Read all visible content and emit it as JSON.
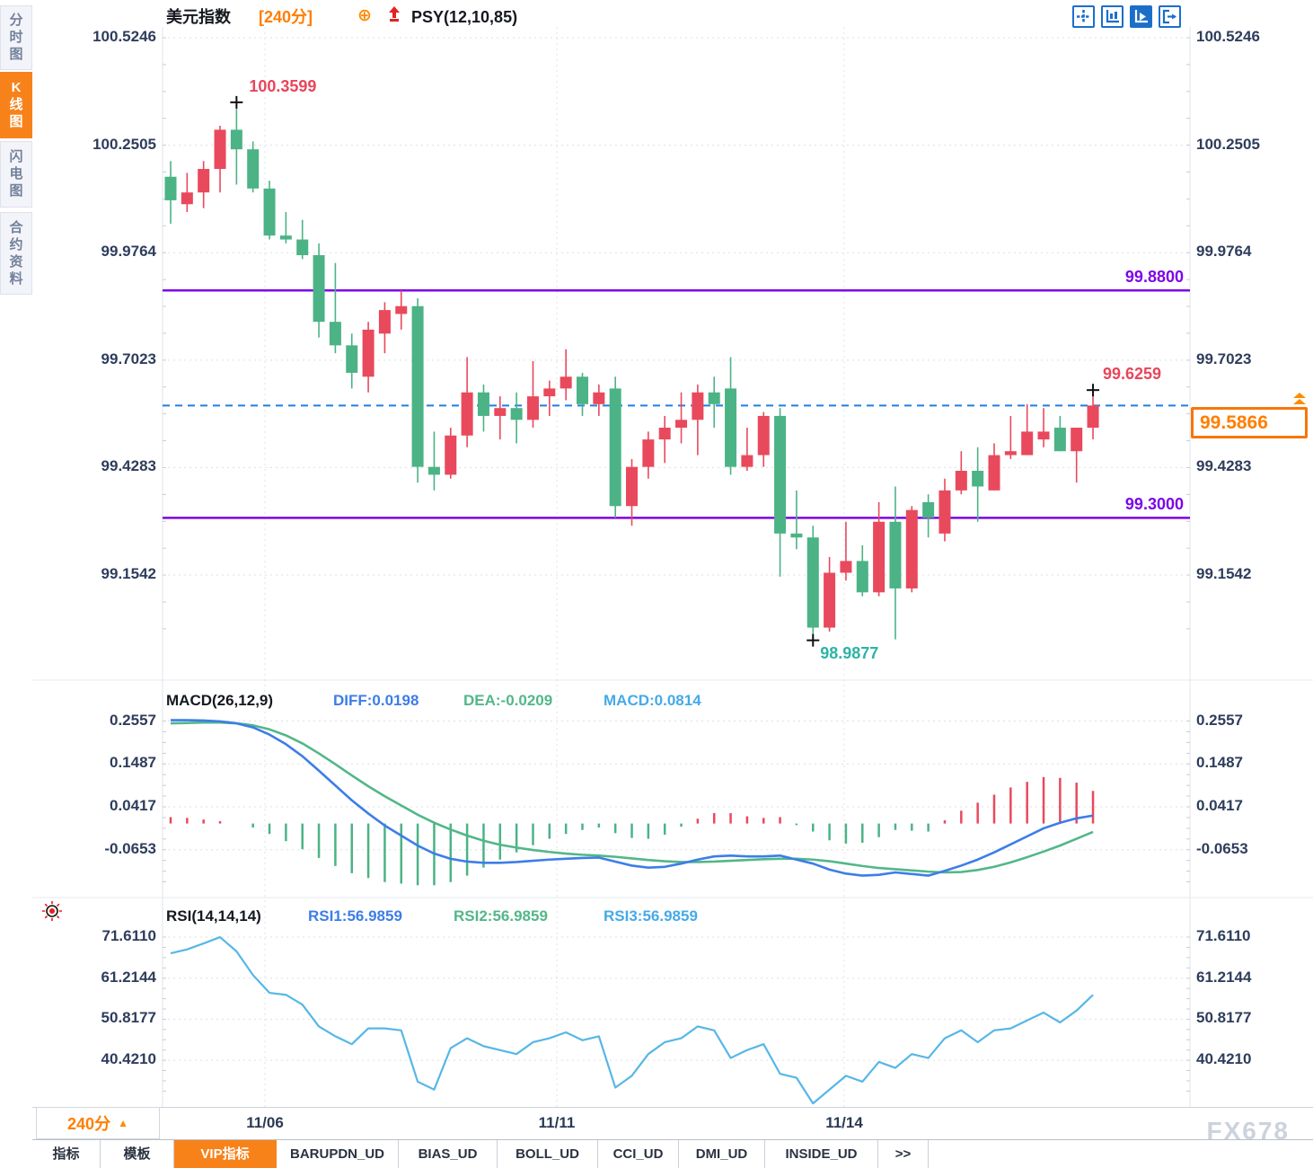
{
  "sidebar": {
    "tabs": [
      {
        "label": "分时图",
        "active": false
      },
      {
        "label": "K线图",
        "active": true
      },
      {
        "label": "闪电图",
        "active": false
      },
      {
        "label": "合约资料",
        "active": false
      }
    ]
  },
  "header": {
    "title": "美元指数",
    "period": "[240分]",
    "plus_icon": "⊕",
    "indicator": "PSY(12,10,85)"
  },
  "toolbar_icons": [
    {
      "name": "crosshair-move",
      "active": false
    },
    {
      "name": "axes-candles",
      "active": false
    },
    {
      "name": "axes-play",
      "active": true
    },
    {
      "name": "exit-panel",
      "active": false
    }
  ],
  "colors": {
    "up": "#e9495c",
    "down": "#4bb385",
    "purple": "#7d05e8",
    "orange": "#ff7e00",
    "dash_blue": "#1f7fe0",
    "diff_blue": "#3d7de8",
    "dea_green": "#52b788",
    "macd_lightblue": "#45aae8",
    "rsi_line": "#56b7e6",
    "teal": "#2db3a6",
    "red_label": "#e9455a"
  },
  "chart_data": {
    "type": "candlestick",
    "symbol": "美元指数",
    "interval": "240分",
    "panels": {
      "price": {
        "axis_labels": [
          "100.5246",
          "100.2505",
          "99.9764",
          "99.7023",
          "99.4283",
          "99.1542"
        ],
        "axis_range": [
          98.9,
          100.55
        ],
        "candles": [
          [
            100.17,
            100.21,
            100.05,
            100.11
          ],
          [
            100.1,
            100.18,
            100.08,
            100.13
          ],
          [
            100.13,
            100.21,
            100.09,
            100.19
          ],
          [
            100.19,
            100.3,
            100.13,
            100.29
          ],
          [
            100.29,
            100.3599,
            100.15,
            100.24
          ],
          [
            100.24,
            100.26,
            100.13,
            100.14
          ],
          [
            100.14,
            100.16,
            100.01,
            100.02
          ],
          [
            100.02,
            100.08,
            100.0,
            100.01
          ],
          [
            100.01,
            100.06,
            99.96,
            99.97
          ],
          [
            99.97,
            100.0,
            99.76,
            99.8
          ],
          [
            99.8,
            99.95,
            99.72,
            99.74
          ],
          [
            99.74,
            99.77,
            99.63,
            99.67
          ],
          [
            99.66,
            99.8,
            99.62,
            99.78
          ],
          [
            99.77,
            99.85,
            99.72,
            99.83
          ],
          [
            99.82,
            99.88,
            99.78,
            99.84
          ],
          [
            99.84,
            99.86,
            99.39,
            99.43
          ],
          [
            99.43,
            99.52,
            99.37,
            99.41
          ],
          [
            99.41,
            99.53,
            99.4,
            99.51
          ],
          [
            99.51,
            99.71,
            99.48,
            99.62
          ],
          [
            99.62,
            99.64,
            99.52,
            99.56
          ],
          [
            99.56,
            99.61,
            99.5,
            99.58
          ],
          [
            99.58,
            99.62,
            99.49,
            99.55
          ],
          [
            99.55,
            99.7,
            99.53,
            99.61
          ],
          [
            99.61,
            99.65,
            99.56,
            99.63
          ],
          [
            99.63,
            99.73,
            99.6,
            99.66
          ],
          [
            99.66,
            99.67,
            99.56,
            99.59
          ],
          [
            99.59,
            99.64,
            99.56,
            99.62
          ],
          [
            99.63,
            99.66,
            99.3,
            99.33
          ],
          [
            99.33,
            99.45,
            99.28,
            99.43
          ],
          [
            99.43,
            99.52,
            99.4,
            99.5
          ],
          [
            99.5,
            99.56,
            99.44,
            99.53
          ],
          [
            99.53,
            99.62,
            99.49,
            99.55
          ],
          [
            99.55,
            99.64,
            99.46,
            99.62
          ],
          [
            99.62,
            99.66,
            99.53,
            99.59
          ],
          [
            99.63,
            99.71,
            99.41,
            99.43
          ],
          [
            99.43,
            99.53,
            99.42,
            99.46
          ],
          [
            99.46,
            99.57,
            99.43,
            99.56
          ],
          [
            99.56,
            99.58,
            99.15,
            99.26
          ],
          [
            99.26,
            99.37,
            99.22,
            99.25
          ],
          [
            99.25,
            99.28,
            98.9877,
            99.02
          ],
          [
            99.02,
            99.2,
            99.01,
            99.16
          ],
          [
            99.16,
            99.29,
            99.14,
            99.19
          ],
          [
            99.19,
            99.23,
            99.1,
            99.11
          ],
          [
            99.11,
            99.34,
            99.1,
            99.29
          ],
          [
            99.29,
            99.38,
            98.99,
            99.12
          ],
          [
            99.12,
            99.33,
            99.11,
            99.32
          ],
          [
            99.34,
            99.36,
            99.25,
            99.3
          ],
          [
            99.26,
            99.4,
            99.24,
            99.37
          ],
          [
            99.37,
            99.47,
            99.36,
            99.42
          ],
          [
            99.42,
            99.48,
            99.29,
            99.38
          ],
          [
            99.37,
            99.49,
            99.37,
            99.46
          ],
          [
            99.46,
            99.56,
            99.45,
            99.47
          ],
          [
            99.46,
            99.59,
            99.46,
            99.52
          ],
          [
            99.5,
            99.58,
            99.48,
            99.52
          ],
          [
            99.53,
            99.56,
            99.47,
            99.47
          ],
          [
            99.47,
            99.53,
            99.39,
            99.53
          ],
          [
            99.53,
            99.6259,
            99.5,
            99.5866
          ]
        ],
        "hlines": [
          {
            "value": 99.88,
            "label": "99.8800"
          },
          {
            "value": 99.3,
            "label": "99.3000"
          }
        ],
        "current_price": {
          "value": 99.5866,
          "label": "99.5866"
        },
        "annotations": [
          {
            "type": "high",
            "candle": 5,
            "price": 100.3599,
            "label": "100.3599",
            "color_key": "red_label"
          },
          {
            "type": "low",
            "candle": 40,
            "price": 98.9877,
            "label": "98.9877",
            "color_key": "teal"
          },
          {
            "type": "last",
            "candle": 57,
            "price": 99.6259,
            "label": "99.6259",
            "color_key": "red_label"
          }
        ]
      },
      "macd": {
        "title": "MACD(26,12,9)",
        "diff_label": "DIFF:0.0198",
        "dea_label": "DEA:-0.0209",
        "macd_label": "MACD:0.0814",
        "axis_labels": [
          "0.2557",
          "0.1487",
          "0.0417",
          "-0.0653"
        ],
        "diff": [
          0.258,
          0.258,
          0.257,
          0.255,
          0.25,
          0.24,
          0.222,
          0.198,
          0.168,
          0.132,
          0.095,
          0.058,
          0.025,
          -0.005,
          -0.03,
          -0.055,
          -0.075,
          -0.088,
          -0.095,
          -0.098,
          -0.098,
          -0.096,
          -0.093,
          -0.09,
          -0.088,
          -0.086,
          -0.085,
          -0.095,
          -0.105,
          -0.11,
          -0.108,
          -0.1,
          -0.09,
          -0.082,
          -0.08,
          -0.082,
          -0.082,
          -0.08,
          -0.09,
          -0.1,
          -0.115,
          -0.125,
          -0.13,
          -0.128,
          -0.122,
          -0.126,
          -0.13,
          -0.118,
          -0.105,
          -0.09,
          -0.072,
          -0.052,
          -0.032,
          -0.012,
          0.002,
          0.013,
          0.0198
        ],
        "dea": [
          0.25,
          0.251,
          0.252,
          0.252,
          0.25,
          0.245,
          0.235,
          0.22,
          0.2,
          0.175,
          0.148,
          0.12,
          0.093,
          0.068,
          0.045,
          0.022,
          0.002,
          -0.015,
          -0.03,
          -0.043,
          -0.053,
          -0.06,
          -0.066,
          -0.071,
          -0.075,
          -0.078,
          -0.08,
          -0.083,
          -0.087,
          -0.091,
          -0.094,
          -0.096,
          -0.096,
          -0.095,
          -0.093,
          -0.091,
          -0.089,
          -0.088,
          -0.088,
          -0.09,
          -0.094,
          -0.1,
          -0.106,
          -0.111,
          -0.114,
          -0.117,
          -0.12,
          -0.122,
          -0.121,
          -0.116,
          -0.108,
          -0.097,
          -0.084,
          -0.07,
          -0.055,
          -0.038,
          -0.0209
        ]
      },
      "rsi": {
        "title": "RSI(14,14,14)",
        "rsi1_label": "RSI1:56.9859",
        "rsi2_label": "RSI2:56.9859",
        "rsi3_label": "RSI3:56.9859",
        "axis_labels": [
          "71.6110",
          "61.2144",
          "50.8177",
          "40.4210"
        ],
        "values": [
          67.5,
          68.5,
          70,
          71.6,
          68,
          62,
          57.5,
          57,
          54.5,
          49,
          46.5,
          44.5,
          48.5,
          48.5,
          48,
          35,
          33,
          43.5,
          46,
          44,
          43,
          42,
          45,
          46,
          47.5,
          45.5,
          46.5,
          33.5,
          36.5,
          42,
          45,
          46,
          49,
          48,
          41,
          43,
          44.5,
          37,
          36,
          29.5,
          33,
          36.5,
          35,
          40,
          38.5,
          42,
          41,
          46,
          48,
          45,
          48,
          48.5,
          50.5,
          52.5,
          50,
          53,
          56.99
        ]
      }
    },
    "x_axis": {
      "dates": [
        "11/06",
        "11/11",
        "11/14"
      ]
    },
    "legend_position": "top-left",
    "grid": true
  },
  "bottom": {
    "period_selector": "240分",
    "period_arrow": "▲",
    "tabs": [
      {
        "label": "指标",
        "active": false
      },
      {
        "label": "模板",
        "active": false
      },
      {
        "label": "VIP指标",
        "active": true
      },
      {
        "label": "BARUPDN_UD",
        "active": false
      },
      {
        "label": "BIAS_UD",
        "active": false
      },
      {
        "label": "BOLL_UD",
        "active": false
      },
      {
        "label": "CCI_UD",
        "active": false
      },
      {
        "label": "DMI_UD",
        "active": false
      },
      {
        "label": "INSIDE_UD",
        "active": false
      },
      {
        "label": ">>",
        "active": false
      }
    ],
    "watermark": "FX678"
  }
}
